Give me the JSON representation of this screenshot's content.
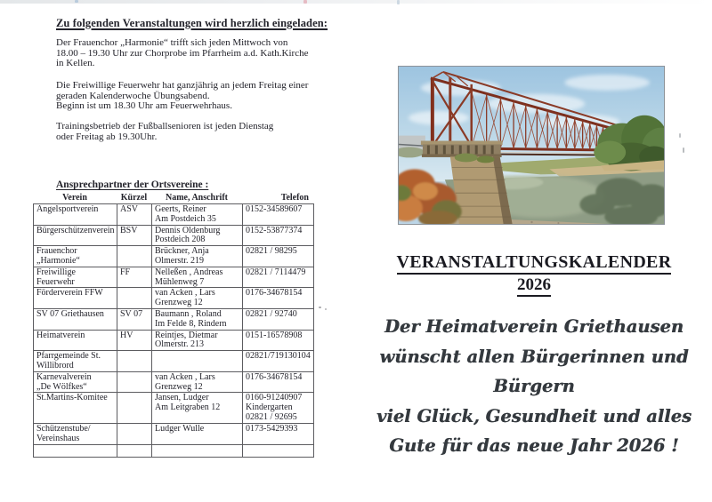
{
  "left_page": {
    "heading": "Zu folgenden Veranstaltungen wird herzlich eingeladen:",
    "paragraphs": [
      "Der Frauenchor „Harmonie“ trifft sich jeden Mittwoch von\n18.00 – 19.30 Uhr zur Chorprobe im Pfarrheim a.d. Kath.Kirche\nin Kellen.",
      "Die Freiwillige Feuerwehr hat ganzjährig an jedem Freitag einer\ngeraden Kalenderwoche Übungsabend.\nBeginn ist um 18.30 Uhr am Feuerwehrhaus.",
      "Trainingsbetrieb der Fußballsenioren ist jeden Dienstag\noder Freitag ab 19.30Uhr."
    ],
    "contacts": {
      "heading": "Ansprechpartner der Ortsvereine :",
      "headers": [
        "Verein",
        "Kürzel",
        "Name, Anschrift",
        "Telefon"
      ],
      "rows": [
        {
          "verein": "Angelsportverein",
          "kuerzel": "ASV",
          "name": "Geerts, Reiner\nAm Postdeich 35",
          "telefon": "0152-34589607"
        },
        {
          "verein": "Bürgerschützenverein",
          "kuerzel": "BSV",
          "name": "Dennis Oldenburg\nPostdeich 208",
          "telefon": "0152-53877374"
        },
        {
          "verein": "Frauenchor\n„Harmonie“",
          "kuerzel": "",
          "name": "Brückner, Anja\nOlmerstr. 219",
          "telefon": "02821 / 98295"
        },
        {
          "verein": "Freiwillige\nFeuerwehr",
          "kuerzel": "FF",
          "name": "Nelleßen , Andreas\nMühlenweg 7",
          "telefon": "02821 / 7114479"
        },
        {
          "verein": "Förderverein FFW",
          "kuerzel": "",
          "name": "van Acken , Lars\nGrenzweg 12",
          "telefon": "0176-34678154"
        },
        {
          "verein": "SV 07 Griethausen",
          "kuerzel": "SV 07",
          "name": "Baumann , Roland\nIm Felde 8, Rindern",
          "telefon": "02821 / 92740"
        },
        {
          "verein": "Heimatverein",
          "kuerzel": "HV",
          "name": "Reintjes, Dietmar\nOlmerstr. 213",
          "telefon": "0151-16578908"
        },
        {
          "verein": "Pfarrgemeinde St.\nWillibrord",
          "kuerzel": "",
          "name": "",
          "telefon": "02821/719130104"
        },
        {
          "verein": "Karnevalverein\n„De Wölfkes“",
          "kuerzel": "",
          "name": "van Acken , Lars\nGrenzweg 12",
          "telefon": "0176-34678154"
        },
        {
          "verein": "St.Martins-Komitee",
          "kuerzel": "",
          "name": "Jansen, Ludger\nAm Leitgraben 12",
          "telefon": "0160-91240907\nKindergarten\n02821 / 92695"
        },
        {
          "verein": "Schützenstube/\nVereinshaus",
          "kuerzel": "",
          "name": "Ludger Wulle",
          "telefon": "0173-5429393"
        },
        {
          "verein": "",
          "kuerzel": "",
          "name": "",
          "telefon": ""
        }
      ]
    }
  },
  "right_page": {
    "photo_subject": "red iron railway truss bridge over a river with stone pier and trees",
    "title": "VERANSTALTUNGSKALENDER",
    "year": "2026",
    "greeting_lines": [
      "Der Heimatverein Griethausen",
      "wünscht allen Bürgerinnen und Bürgern",
      "viel Glück, Gesundheit und alles",
      "Gute für das neue Jahr 2026 !"
    ]
  },
  "colors": {
    "page_bg": "#ffffff",
    "text": "#23232b",
    "table_border": "#5c5c60",
    "bridge_rust": "#93402a",
    "bridge_shadow": "#6e2b1e",
    "sky": "#a7c9e2",
    "water": "#8e9c85",
    "sand": "#cbb88c",
    "pier_stone": "#ac9670",
    "script_text": "#34393e"
  }
}
